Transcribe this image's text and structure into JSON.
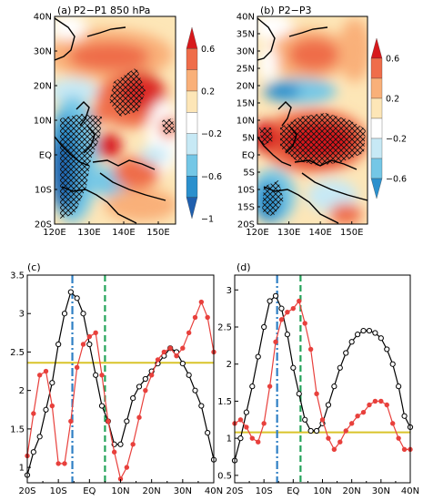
{
  "chart_data": [
    {
      "type": "heatmap",
      "panel": "(a)",
      "title": "P2−P1 850 hPa",
      "x_ticks": [
        "120E",
        "130E",
        "140E",
        "150E"
      ],
      "y_ticks": [
        "20S",
        "10S",
        "EQ",
        "10N",
        "20N",
        "30N",
        "40N"
      ],
      "xlim": [
        120,
        155
      ],
      "ylim": [
        -20,
        40
      ],
      "colorbar_labels": [
        "0.6",
        "0.2",
        "−0.2",
        "−0.6",
        "−1"
      ],
      "colorbar_colors": [
        "#d7191c",
        "#ef6d4a",
        "#f9b079",
        "#fde6b7",
        "#ffffff",
        "#c7e9f5",
        "#74c7e6",
        "#2b90cd",
        "#1f5fae"
      ],
      "colorbar_levels": [
        0.8,
        0.6,
        0.4,
        0.2,
        0.0,
        -0.2,
        -0.4,
        -0.6,
        -0.8
      ],
      "hatched_regions": [
        "central (130E-140E, 0-25N)",
        "western (120E-135E, 20S-10N)"
      ]
    },
    {
      "type": "heatmap",
      "panel": "(b)",
      "title": "P2−P3",
      "x_ticks": [
        "120E",
        "130E",
        "140E",
        "150E"
      ],
      "y_ticks": [
        "20S",
        "15S",
        "10S",
        "5S",
        "EQ",
        "5N",
        "10N",
        "15N",
        "20N",
        "25N",
        "30N",
        "35N",
        "40N"
      ],
      "xlim": [
        120,
        155
      ],
      "ylim": [
        -20,
        40
      ],
      "colorbar_labels": [
        "0.6",
        "0.2",
        "−0.2",
        "−0.6"
      ],
      "colorbar_colors": [
        "#d7191c",
        "#ef6d4a",
        "#f9b079",
        "#fde6b7",
        "#ffffff",
        "#c7e9f5",
        "#74c7e6",
        "#2b90cd"
      ],
      "colorbar_levels": [
        0.8,
        0.6,
        0.4,
        0.2,
        0.0,
        -0.2,
        -0.4,
        -0.6
      ],
      "hatched_regions": [
        "equatorial band (128E-152E, 10S-12N)"
      ]
    },
    {
      "type": "line",
      "panel": "(c)",
      "x_ticks": [
        "20S",
        "10S",
        "EQ",
        "10N",
        "20N",
        "30N",
        "40N"
      ],
      "xlim": [
        -20,
        40
      ],
      "ylim": [
        0.8,
        3.5
      ],
      "y_ticks": [
        "1",
        "1.5",
        "2",
        "2.5",
        "3",
        "3.5"
      ],
      "horizontal_line": 2.36,
      "vertical_lines": [
        {
          "x": -5.5,
          "color": "#2f7fc4",
          "style": "dash-dot"
        },
        {
          "x": 5,
          "color": "#24a35a",
          "style": "dashed"
        }
      ],
      "series": [
        {
          "color": "#000000",
          "marker": "open-circle",
          "x": [
            -20,
            -18,
            -16,
            -14,
            -12,
            -10,
            -8,
            -6,
            -4,
            -2,
            0,
            2,
            4,
            6,
            8,
            10,
            12,
            14,
            16,
            18,
            20,
            22,
            24,
            26,
            28,
            30,
            32,
            34,
            36,
            38,
            40
          ],
          "y": [
            0.9,
            1.2,
            1.4,
            1.75,
            2.1,
            2.6,
            3.0,
            3.28,
            3.2,
            3.0,
            2.6,
            2.2,
            1.8,
            1.6,
            1.3,
            1.3,
            1.6,
            1.9,
            2.05,
            2.15,
            2.25,
            2.35,
            2.45,
            2.55,
            2.5,
            2.35,
            2.2,
            2.0,
            1.8,
            1.45,
            1.1
          ]
        },
        {
          "color": "#e8403c",
          "marker": "filled-circle",
          "x": [
            -20,
            -18,
            -16,
            -14,
            -12,
            -10,
            -8,
            -6,
            -4,
            -2,
            0,
            2,
            4,
            6,
            8,
            10,
            12,
            14,
            16,
            18,
            20,
            22,
            24,
            26,
            28,
            30,
            32,
            34,
            36,
            38,
            40
          ],
          "y": [
            1.15,
            1.7,
            2.2,
            2.25,
            1.8,
            1.05,
            1.05,
            1.6,
            2.3,
            2.6,
            2.7,
            2.75,
            2.2,
            1.6,
            1.2,
            0.85,
            1.0,
            1.3,
            1.65,
            2.0,
            2.2,
            2.4,
            2.5,
            2.55,
            2.45,
            2.55,
            2.75,
            2.95,
            3.15,
            2.95,
            2.5
          ]
        }
      ]
    },
    {
      "type": "line",
      "panel": "(d)",
      "x_ticks": [
        "20S",
        "10S",
        "EQ",
        "10N",
        "20N",
        "30N",
        "40N"
      ],
      "xlim": [
        -20,
        40
      ],
      "ylim": [
        0.4,
        3.2
      ],
      "y_ticks": [
        "0.5",
        "1",
        "1.5",
        "2",
        "2.5",
        "3"
      ],
      "horizontal_line": 1.08,
      "vertical_lines": [
        {
          "x": -5.5,
          "color": "#2f7fc4",
          "style": "dash-dot"
        },
        {
          "x": 2.5,
          "color": "#24a35a",
          "style": "dashed"
        }
      ],
      "series": [
        {
          "color": "#000000",
          "marker": "open-circle",
          "x": [
            -20,
            -18,
            -16,
            -14,
            -12,
            -10,
            -8,
            -6,
            -4,
            -2,
            0,
            2,
            4,
            6,
            8,
            10,
            12,
            14,
            16,
            18,
            20,
            22,
            24,
            26,
            28,
            30,
            32,
            34,
            36,
            38,
            40
          ],
          "y": [
            0.7,
            1.0,
            1.35,
            1.7,
            2.1,
            2.5,
            2.85,
            2.92,
            2.75,
            2.4,
            1.95,
            1.6,
            1.25,
            1.1,
            1.1,
            1.2,
            1.45,
            1.7,
            1.95,
            2.15,
            2.3,
            2.4,
            2.45,
            2.45,
            2.42,
            2.35,
            2.2,
            2.0,
            1.7,
            1.3,
            1.15
          ]
        },
        {
          "color": "#e8403c",
          "marker": "filled-circle",
          "x": [
            -20,
            -18,
            -16,
            -14,
            -12,
            -10,
            -8,
            -6,
            -4,
            -2,
            0,
            2,
            4,
            6,
            8,
            10,
            12,
            14,
            16,
            18,
            20,
            22,
            24,
            26,
            28,
            30,
            32,
            34,
            36,
            38,
            40
          ],
          "y": [
            1.2,
            1.25,
            1.15,
            1.0,
            0.95,
            1.2,
            1.7,
            2.3,
            2.6,
            2.7,
            2.75,
            2.85,
            2.55,
            2.2,
            1.6,
            1.25,
            1.0,
            0.85,
            0.95,
            1.1,
            1.2,
            1.3,
            1.35,
            1.45,
            1.5,
            1.5,
            1.45,
            1.2,
            1.0,
            0.85,
            0.85
          ]
        }
      ]
    }
  ]
}
